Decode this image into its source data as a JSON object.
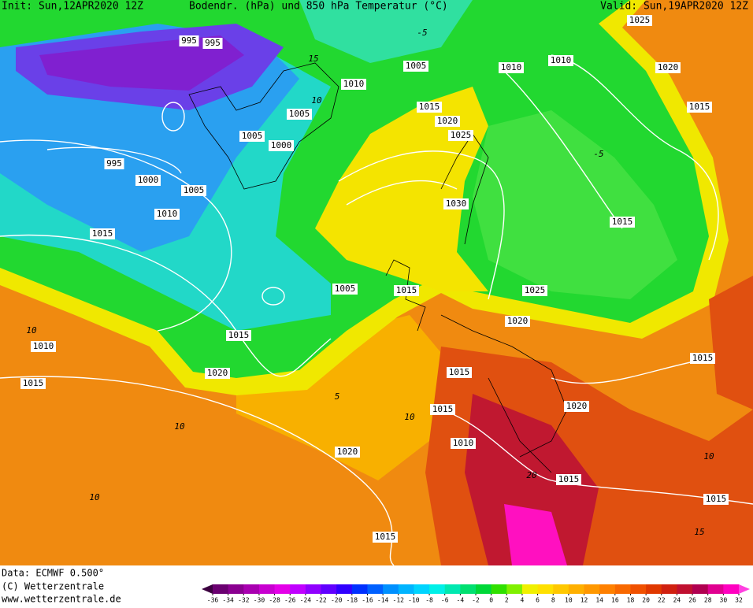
{
  "header": {
    "init": "Init: Sun,12APR2020 12Z",
    "title": "Bodendr. (hPa) und 850 hPa Temperatur (°C)",
    "valid": "Valid: Sun,19APR2020 12Z"
  },
  "footer": {
    "data": "Data: ECMWF  0.500°",
    "copyright": "(C) Wetterzentrale",
    "url": "www.wetterzentrale.de"
  },
  "colorbar": {
    "ticks": [
      -36,
      -34,
      -32,
      -30,
      -28,
      -26,
      -24,
      -22,
      -20,
      -18,
      -16,
      -14,
      -12,
      -10,
      -8,
      -6,
      -4,
      -2,
      0,
      2,
      4,
      6,
      8,
      10,
      12,
      14,
      16,
      18,
      20,
      22,
      24,
      26,
      28,
      30,
      32
    ],
    "colors": [
      "#3c0040",
      "#6a0070",
      "#8a0090",
      "#a800b0",
      "#c800d0",
      "#e400e8",
      "#c000ff",
      "#9000ff",
      "#6000ff",
      "#3000ff",
      "#0030ff",
      "#0060ff",
      "#0090ff",
      "#00b4ff",
      "#00d4ff",
      "#00f0e8",
      "#00e8b0",
      "#00e070",
      "#00d838",
      "#30e000",
      "#80f000",
      "#f0f000",
      "#ffe000",
      "#ffc800",
      "#ffb000",
      "#ff9800",
      "#ff8000",
      "#f86800",
      "#f05000",
      "#e03800",
      "#d02010",
      "#c01030",
      "#b00050",
      "#e00090",
      "#ff00c0",
      "#ff40e0"
    ]
  },
  "isobar_labels": [
    995,
    995,
    1005,
    1010,
    1010,
    1025,
    1020,
    1015,
    1010,
    1005,
    1005,
    1000,
    1015,
    1020,
    1025,
    995,
    1000,
    1005,
    1010,
    1015,
    1030,
    1015,
    1025,
    1005,
    1015,
    1020,
    1015,
    1010,
    1015,
    1020,
    1015,
    1015,
    1015,
    1020,
    1020,
    1010,
    1015,
    1015,
    1015
  ],
  "isotherm_labels": [
    10,
    -5,
    15,
    10,
    -5,
    10,
    10,
    5,
    10,
    10,
    20,
    15
  ]
}
